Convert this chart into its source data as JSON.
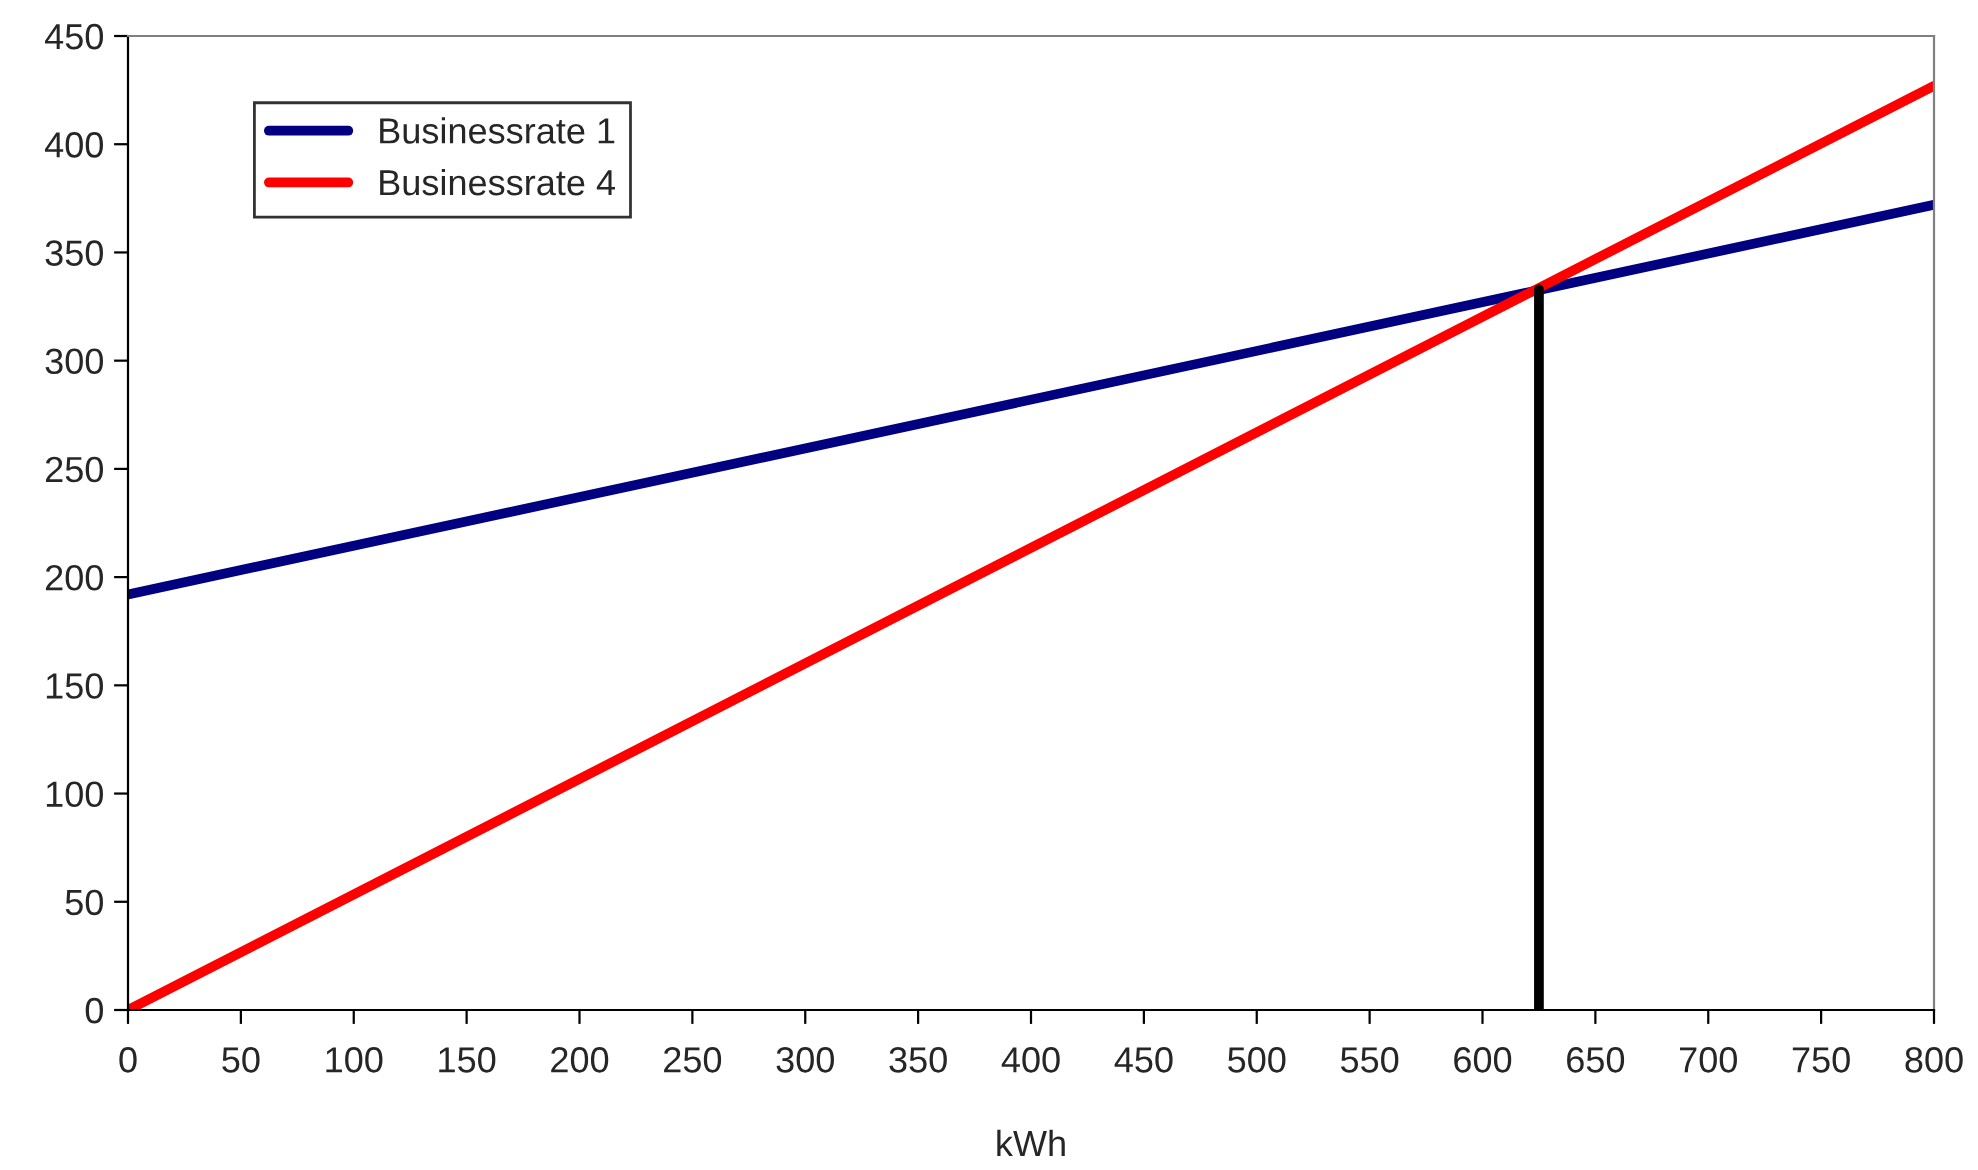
{
  "chart_data": {
    "type": "line",
    "xlabel": "kWh",
    "xlim": [
      0,
      800
    ],
    "xticks": [
      0,
      50,
      100,
      150,
      200,
      250,
      300,
      350,
      400,
      450,
      500,
      550,
      600,
      650,
      700,
      750,
      800
    ],
    "ylim": [
      0,
      450
    ],
    "yticks": [
      0,
      50,
      100,
      150,
      200,
      250,
      300,
      350,
      400,
      450
    ],
    "grid": false,
    "legend": "top left",
    "marker": "none",
    "line_style": "solid",
    "series": [
      {
        "name": "Businessrate 1",
        "color": "#000080",
        "x": [
          0,
          800
        ],
        "values": [
          192,
          372
        ]
      },
      {
        "name": "Businessrate 4",
        "color": "#ff0000",
        "x": [
          0,
          800
        ],
        "values": [
          0,
          427
        ]
      },
      {
        "color": "#000000",
        "x": [
          625,
          625
        ],
        "values": [
          0,
          333
        ]
      }
    ]
  }
}
